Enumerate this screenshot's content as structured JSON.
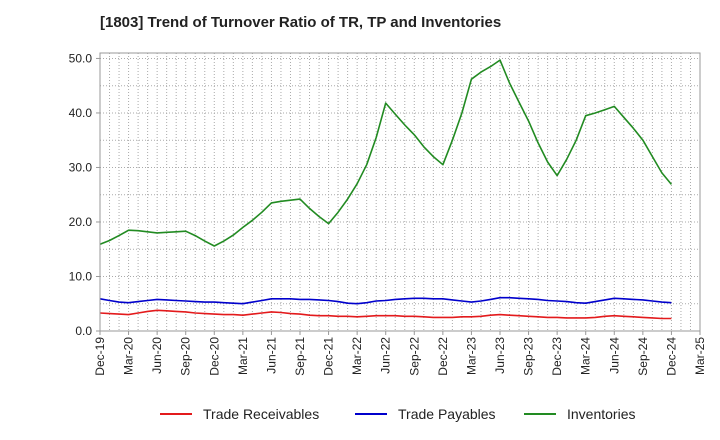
{
  "chart_data": {
    "type": "line",
    "title": "[1803]  Trend of Turnover Ratio of TR, TP and Inventories",
    "xlabel": "",
    "ylabel": "",
    "ylim": [
      0,
      51
    ],
    "yticks": [
      "0.0",
      "10.0",
      "20.0",
      "30.0",
      "40.0",
      "50.0"
    ],
    "ytick_values": [
      0,
      10,
      20,
      30,
      40,
      50
    ],
    "xticks": [
      "Dec-19",
      "Mar-20",
      "Jun-20",
      "Sep-20",
      "Dec-20",
      "Mar-21",
      "Jun-21",
      "Sep-21",
      "Dec-21",
      "Mar-22",
      "Jun-22",
      "Sep-22",
      "Dec-22",
      "Mar-23",
      "Jun-23",
      "Sep-23",
      "Dec-23",
      "Mar-24",
      "Jun-24",
      "Sep-24",
      "Dec-24",
      "Mar-25"
    ],
    "grid": true,
    "legend_position": "bottom",
    "x": [
      "Dec-19",
      "Jan-20",
      "Feb-20",
      "Mar-20",
      "Apr-20",
      "May-20",
      "Jun-20",
      "Jul-20",
      "Aug-20",
      "Sep-20",
      "Oct-20",
      "Nov-20",
      "Dec-20",
      "Jan-21",
      "Feb-21",
      "Mar-21",
      "Apr-21",
      "May-21",
      "Jun-21",
      "Jul-21",
      "Aug-21",
      "Sep-21",
      "Oct-21",
      "Nov-21",
      "Dec-21",
      "Jan-22",
      "Feb-22",
      "Mar-22",
      "Apr-22",
      "May-22",
      "Jun-22",
      "Jul-22",
      "Aug-22",
      "Sep-22",
      "Oct-22",
      "Nov-22",
      "Dec-22",
      "Jan-23",
      "Feb-23",
      "Mar-23",
      "Apr-23",
      "May-23",
      "Jun-23",
      "Jul-23",
      "Aug-23",
      "Sep-23",
      "Oct-23",
      "Nov-23",
      "Dec-23",
      "Jan-24",
      "Feb-24",
      "Mar-24",
      "Apr-24",
      "May-24",
      "Jun-24",
      "Jul-24",
      "Aug-24",
      "Sep-24",
      "Oct-24",
      "Nov-24",
      "Dec-24"
    ],
    "series": [
      {
        "name": "Trade Receivables",
        "color": "#e31a1c",
        "values": [
          3.3,
          3.2,
          3.1,
          3.0,
          3.3,
          3.6,
          3.8,
          3.7,
          3.6,
          3.5,
          3.3,
          3.2,
          3.1,
          3.0,
          3.0,
          2.9,
          3.1,
          3.3,
          3.5,
          3.4,
          3.2,
          3.1,
          2.9,
          2.8,
          2.8,
          2.7,
          2.7,
          2.6,
          2.7,
          2.8,
          2.8,
          2.8,
          2.7,
          2.7,
          2.6,
          2.5,
          2.5,
          2.5,
          2.6,
          2.6,
          2.7,
          2.9,
          3.0,
          2.9,
          2.8,
          2.7,
          2.6,
          2.5,
          2.5,
          2.4,
          2.4,
          2.4,
          2.5,
          2.7,
          2.8,
          2.7,
          2.6,
          2.5,
          2.4,
          2.3,
          2.3
        ]
      },
      {
        "name": "Trade Payables",
        "color": "#0000cc",
        "values": [
          5.9,
          5.6,
          5.3,
          5.2,
          5.4,
          5.6,
          5.8,
          5.7,
          5.6,
          5.5,
          5.4,
          5.3,
          5.3,
          5.2,
          5.1,
          5.0,
          5.3,
          5.6,
          5.9,
          5.9,
          5.9,
          5.8,
          5.8,
          5.7,
          5.6,
          5.4,
          5.1,
          5.0,
          5.2,
          5.5,
          5.6,
          5.8,
          5.9,
          6.0,
          6.0,
          5.9,
          5.9,
          5.7,
          5.5,
          5.3,
          5.5,
          5.8,
          6.1,
          6.1,
          6.0,
          5.9,
          5.8,
          5.6,
          5.5,
          5.4,
          5.2,
          5.1,
          5.4,
          5.7,
          6.0,
          5.9,
          5.8,
          5.7,
          5.5,
          5.3,
          5.2
        ]
      },
      {
        "name": "Inventories",
        "color": "#228b22",
        "values": [
          15.9,
          16.6,
          17.5,
          18.5,
          18.4,
          18.2,
          18.0,
          18.1,
          18.2,
          18.3,
          17.5,
          16.5,
          15.6,
          16.5,
          17.6,
          19.0,
          20.3,
          21.8,
          23.5,
          23.8,
          24.0,
          24.2,
          22.5,
          21.0,
          19.7,
          21.8,
          24.2,
          27.0,
          30.5,
          35.5,
          41.8,
          39.8,
          37.8,
          36.0,
          33.8,
          32.0,
          30.5,
          35.0,
          40.0,
          46.2,
          47.5,
          48.5,
          49.7,
          45.5,
          42.0,
          38.5,
          34.5,
          31.0,
          28.5,
          31.5,
          35.0,
          39.5,
          40.0,
          40.6,
          41.2,
          39.2,
          37.2,
          35.0,
          32.0,
          29.0,
          26.9
        ]
      }
    ]
  }
}
